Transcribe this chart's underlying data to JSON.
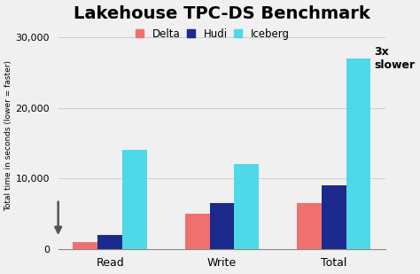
{
  "title": "Lakehouse TPC-DS Benchmark",
  "ylabel": "Total time in seconds (lower = faster)",
  "categories": [
    "Read",
    "Write",
    "Total"
  ],
  "series": {
    "Delta": [
      1000,
      5000,
      6500
    ],
    "Hudi": [
      2000,
      6500,
      9000
    ],
    "Iceberg": [
      14000,
      12000,
      27000
    ]
  },
  "colors": {
    "Delta": "#F07070",
    "Hudi": "#1B2A8C",
    "Iceberg": "#4DD9E8"
  },
  "ylim": [
    0,
    32000
  ],
  "yticks": [
    0,
    10000,
    20000,
    30000
  ],
  "ytick_labels": [
    "0",
    "10,000",
    "20,000",
    "30,000"
  ],
  "annotation": "3x\nslower",
  "background_color": "#f0f0f0",
  "title_fontsize": 14,
  "label_fontsize": 8,
  "legend_fontsize": 8.5,
  "bar_width": 0.22
}
